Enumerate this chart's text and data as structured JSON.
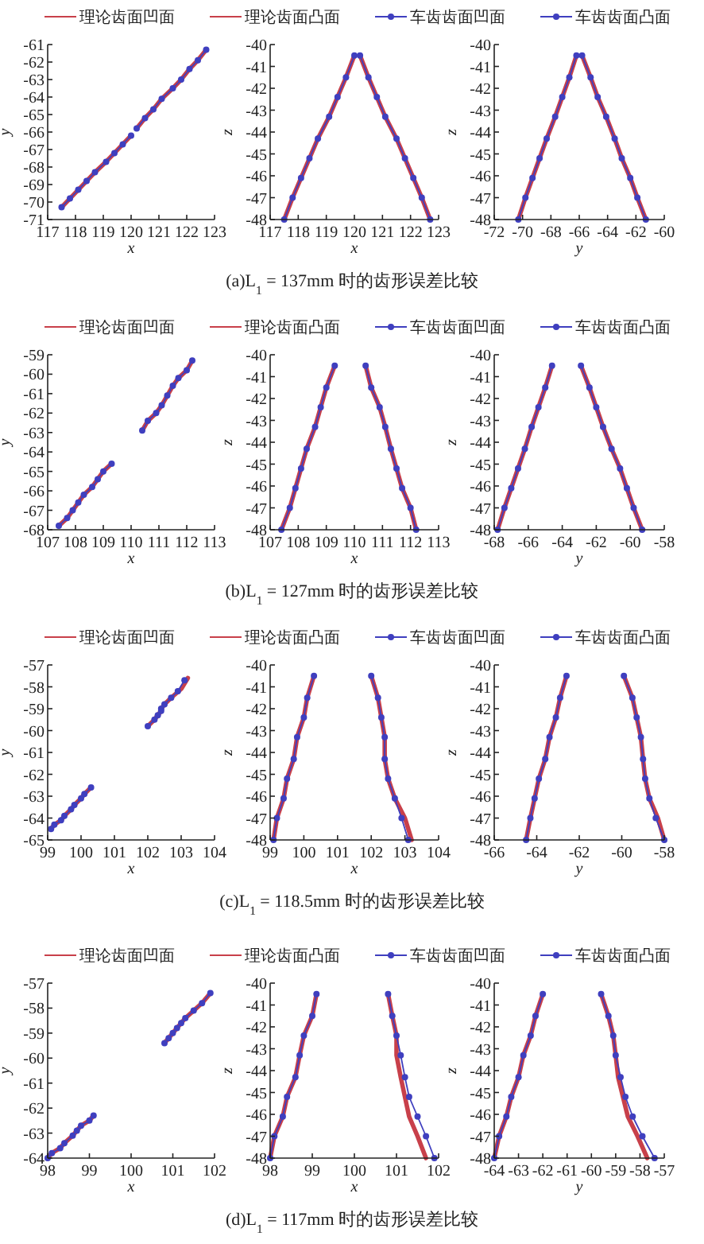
{
  "chart_data": [
    {
      "type": "line",
      "xlabel": "x",
      "ylabel": "y",
      "xlim": [
        117,
        123
      ],
      "xticks": [
        117,
        118,
        119,
        120,
        121,
        122,
        123
      ],
      "ylim": [
        -71,
        -61
      ],
      "yticks": [
        -71,
        -70,
        -69,
        -68,
        -67,
        -66,
        -65,
        -64,
        -63,
        -62,
        -61
      ],
      "legend": "top",
      "annotations": [
        "(a)L$_{1}$ = 137mm 时的齿形误差比较"
      ],
      "series": [
        {
          "name": "理论齿面凹面",
          "color": "#c8404a",
          "marker": "none",
          "x": [
            117.5,
            117.8,
            118.1,
            118.4,
            118.7,
            119.1,
            119.4,
            119.7,
            120.0
          ],
          "values": [
            -70.3,
            -69.8,
            -69.3,
            -68.8,
            -68.3,
            -67.7,
            -67.2,
            -66.7,
            -66.2
          ]
        },
        {
          "name": "理论齿面凸面",
          "color": "#c8404a",
          "marker": "none",
          "x": [
            122.7,
            122.4,
            122.1,
            121.8,
            121.5,
            121.1,
            120.8,
            120.5,
            120.2
          ],
          "values": [
            -61.3,
            -61.9,
            -62.4,
            -63.0,
            -63.5,
            -64.1,
            -64.7,
            -65.2,
            -65.8
          ]
        },
        {
          "name": "车齿齿面凹面",
          "color": "#3f3fbf",
          "marker": "circle",
          "x": [
            117.5,
            117.8,
            118.1,
            118.4,
            118.7,
            119.1,
            119.4,
            119.7,
            120.0
          ],
          "values": [
            -70.3,
            -69.8,
            -69.3,
            -68.8,
            -68.3,
            -67.7,
            -67.2,
            -66.7,
            -66.2
          ]
        },
        {
          "name": "车齿齿面凸面",
          "color": "#3f3fbf",
          "marker": "circle",
          "x": [
            122.7,
            122.4,
            122.1,
            121.8,
            121.5,
            121.1,
            120.8,
            120.5,
            120.2
          ],
          "values": [
            -61.3,
            -61.9,
            -62.4,
            -63.0,
            -63.5,
            -64.1,
            -64.7,
            -65.2,
            -65.8
          ]
        }
      ]
    },
    {
      "type": "line",
      "xlabel": "x",
      "ylabel": "z",
      "xlim": [
        117,
        123
      ],
      "xticks": [
        117,
        118,
        119,
        120,
        121,
        122,
        123
      ],
      "ylim": [
        -48,
        -40
      ],
      "yticks": [
        -48,
        -47,
        -46,
        -45,
        -44,
        -43,
        -42,
        -41,
        -40
      ],
      "series": [
        {
          "color": "#c8404a",
          "marker": "none",
          "x": [
            117.5,
            117.8,
            118.1,
            118.4,
            118.7,
            119.1,
            119.4,
            119.7,
            120.0
          ],
          "values": [
            -48,
            -47,
            -46.1,
            -45.2,
            -44.3,
            -43.3,
            -42.4,
            -41.5,
            -40.5
          ]
        },
        {
          "color": "#c8404a",
          "marker": "none",
          "x": [
            122.7,
            122.4,
            122.1,
            121.8,
            121.5,
            121.1,
            120.8,
            120.5,
            120.2
          ],
          "values": [
            -48,
            -47,
            -46.1,
            -45.2,
            -44.3,
            -43.3,
            -42.4,
            -41.5,
            -40.5
          ]
        },
        {
          "color": "#3f3fbf",
          "marker": "circle",
          "x": [
            117.5,
            117.8,
            118.1,
            118.4,
            118.7,
            119.1,
            119.4,
            119.7,
            120.0
          ],
          "values": [
            -48,
            -47,
            -46.1,
            -45.2,
            -44.3,
            -43.3,
            -42.4,
            -41.5,
            -40.5
          ]
        },
        {
          "color": "#3f3fbf",
          "marker": "circle",
          "x": [
            122.7,
            122.4,
            122.1,
            121.8,
            121.5,
            121.1,
            120.8,
            120.5,
            120.2
          ],
          "values": [
            -48,
            -47,
            -46.1,
            -45.2,
            -44.3,
            -43.3,
            -42.4,
            -41.5,
            -40.5
          ]
        }
      ]
    },
    {
      "type": "line",
      "xlabel": "y",
      "ylabel": "z",
      "xlim": [
        -72,
        -60
      ],
      "xticks": [
        -72,
        -70,
        -68,
        -66,
        -64,
        -62,
        -60
      ],
      "ylim": [
        -48,
        -40
      ],
      "yticks": [
        -48,
        -47,
        -46,
        -45,
        -44,
        -43,
        -42,
        -41,
        -40
      ],
      "series": [
        {
          "color": "#c8404a",
          "marker": "none",
          "x": [
            -70.3,
            -69.8,
            -69.3,
            -68.8,
            -68.3,
            -67.7,
            -67.2,
            -66.7,
            -66.2
          ],
          "values": [
            -48,
            -47,
            -46.1,
            -45.2,
            -44.3,
            -43.3,
            -42.4,
            -41.5,
            -40.5
          ]
        },
        {
          "color": "#c8404a",
          "marker": "none",
          "x": [
            -61.3,
            -61.9,
            -62.4,
            -63.0,
            -63.5,
            -64.1,
            -64.7,
            -65.2,
            -65.8
          ],
          "values": [
            -48,
            -47,
            -46.1,
            -45.2,
            -44.3,
            -43.3,
            -42.4,
            -41.5,
            -40.5
          ]
        },
        {
          "color": "#3f3fbf",
          "marker": "circle",
          "x": [
            -70.3,
            -69.8,
            -69.3,
            -68.8,
            -68.3,
            -67.7,
            -67.2,
            -66.7,
            -66.2
          ],
          "values": [
            -48,
            -47,
            -46.1,
            -45.2,
            -44.3,
            -43.3,
            -42.4,
            -41.5,
            -40.5
          ]
        },
        {
          "color": "#3f3fbf",
          "marker": "circle",
          "x": [
            -61.3,
            -61.9,
            -62.4,
            -63.0,
            -63.5,
            -64.1,
            -64.7,
            -65.2,
            -65.8
          ],
          "values": [
            -48,
            -47,
            -46.1,
            -45.2,
            -44.3,
            -43.3,
            -42.4,
            -41.5,
            -40.5
          ]
        }
      ]
    },
    {
      "type": "line",
      "xlabel": "x",
      "ylabel": "y",
      "xlim": [
        107,
        113
      ],
      "xticks": [
        107,
        108,
        109,
        110,
        111,
        112,
        113
      ],
      "ylim": [
        -68,
        -59
      ],
      "yticks": [
        -68,
        -67,
        -66,
        -65,
        -64,
        -63,
        -62,
        -61,
        -60,
        -59
      ],
      "legend": "top",
      "annotations": [
        "(b)L$_{1}$ = 127mm 时的齿形误差比较"
      ],
      "series": [
        {
          "name": "理论齿面凹面",
          "color": "#c8404a",
          "marker": "none",
          "x": [
            107.4,
            107.7,
            107.9,
            108.1,
            108.3,
            108.6,
            108.8,
            109.0,
            109.3
          ],
          "values": [
            -67.8,
            -67.4,
            -67.0,
            -66.6,
            -66.2,
            -65.8,
            -65.4,
            -65.0,
            -64.6
          ]
        },
        {
          "name": "理论齿面凸面",
          "color": "#c8404a",
          "marker": "none",
          "x": [
            112.2,
            112.0,
            111.7,
            111.5,
            111.3,
            111.1,
            110.9,
            110.6,
            110.4
          ],
          "values": [
            -59.3,
            -59.8,
            -60.2,
            -60.6,
            -61.1,
            -61.6,
            -62.0,
            -62.4,
            -62.9
          ]
        },
        {
          "name": "车齿齿面凹面",
          "color": "#3f3fbf",
          "marker": "circle",
          "x": [
            107.4,
            107.7,
            107.9,
            108.1,
            108.3,
            108.6,
            108.8,
            109.0,
            109.3
          ],
          "values": [
            -67.8,
            -67.4,
            -67.0,
            -66.6,
            -66.2,
            -65.8,
            -65.4,
            -65.0,
            -64.6
          ]
        },
        {
          "name": "车齿齿面凸面",
          "color": "#3f3fbf",
          "marker": "circle",
          "x": [
            112.2,
            112.0,
            111.7,
            111.5,
            111.3,
            111.1,
            110.9,
            110.6,
            110.4
          ],
          "values": [
            -59.3,
            -59.8,
            -60.2,
            -60.6,
            -61.1,
            -61.6,
            -62.0,
            -62.4,
            -62.9
          ]
        }
      ]
    },
    {
      "type": "line",
      "xlabel": "x",
      "ylabel": "z",
      "xlim": [
        107,
        113
      ],
      "xticks": [
        107,
        108,
        109,
        110,
        111,
        112,
        113
      ],
      "ylim": [
        -48,
        -40
      ],
      "yticks": [
        -48,
        -47,
        -46,
        -45,
        -44,
        -43,
        -42,
        -41,
        -40
      ],
      "series": [
        {
          "color": "#c8404a",
          "marker": "none",
          "x": [
            107.4,
            107.7,
            107.9,
            108.1,
            108.3,
            108.6,
            108.8,
            109.0,
            109.3
          ],
          "values": [
            -48,
            -47,
            -46.1,
            -45.2,
            -44.3,
            -43.3,
            -42.4,
            -41.5,
            -40.5
          ]
        },
        {
          "color": "#c8404a",
          "marker": "none",
          "x": [
            112.2,
            112.0,
            111.7,
            111.5,
            111.3,
            111.1,
            110.9,
            110.6,
            110.4
          ],
          "values": [
            -48,
            -47,
            -46.1,
            -45.2,
            -44.3,
            -43.3,
            -42.4,
            -41.5,
            -40.5
          ]
        },
        {
          "color": "#3f3fbf",
          "marker": "circle",
          "x": [
            107.4,
            107.7,
            107.9,
            108.1,
            108.3,
            108.6,
            108.8,
            109.0,
            109.3
          ],
          "values": [
            -48,
            -47,
            -46.1,
            -45.2,
            -44.3,
            -43.3,
            -42.4,
            -41.5,
            -40.5
          ]
        },
        {
          "color": "#3f3fbf",
          "marker": "circle",
          "x": [
            112.2,
            112.0,
            111.7,
            111.5,
            111.3,
            111.1,
            110.9,
            110.6,
            110.4
          ],
          "values": [
            -48,
            -47,
            -46.1,
            -45.2,
            -44.3,
            -43.3,
            -42.4,
            -41.5,
            -40.5
          ]
        }
      ]
    },
    {
      "type": "line",
      "xlabel": "y",
      "ylabel": "z",
      "xlim": [
        -68,
        -58
      ],
      "xticks": [
        -68,
        -66,
        -64,
        -62,
        -60,
        -58
      ],
      "ylim": [
        -48,
        -40
      ],
      "yticks": [
        -48,
        -47,
        -46,
        -45,
        -44,
        -43,
        -42,
        -41,
        -40
      ],
      "series": [
        {
          "color": "#c8404a",
          "marker": "none",
          "x": [
            -67.8,
            -67.4,
            -67.0,
            -66.6,
            -66.2,
            -65.8,
            -65.4,
            -65.0,
            -64.6
          ],
          "values": [
            -48,
            -47,
            -46.1,
            -45.2,
            -44.3,
            -43.3,
            -42.4,
            -41.5,
            -40.5
          ]
        },
        {
          "color": "#c8404a",
          "marker": "none",
          "x": [
            -59.3,
            -59.8,
            -60.2,
            -60.6,
            -61.1,
            -61.6,
            -62.0,
            -62.4,
            -62.9
          ],
          "values": [
            -48,
            -47,
            -46.1,
            -45.2,
            -44.3,
            -43.3,
            -42.4,
            -41.5,
            -40.5
          ]
        },
        {
          "color": "#3f3fbf",
          "marker": "circle",
          "x": [
            -67.8,
            -67.4,
            -67.0,
            -66.6,
            -66.2,
            -65.8,
            -65.4,
            -65.0,
            -64.6
          ],
          "values": [
            -48,
            -47,
            -46.1,
            -45.2,
            -44.3,
            -43.3,
            -42.4,
            -41.5,
            -40.5
          ]
        },
        {
          "color": "#3f3fbf",
          "marker": "circle",
          "x": [
            -59.3,
            -59.8,
            -60.2,
            -60.6,
            -61.1,
            -61.6,
            -62.0,
            -62.4,
            -62.9
          ],
          "values": [
            -48,
            -47,
            -46.1,
            -45.2,
            -44.3,
            -43.3,
            -42.4,
            -41.5,
            -40.5
          ]
        }
      ]
    },
    {
      "type": "line",
      "xlabel": "x",
      "ylabel": "y",
      "xlim": [
        99,
        104
      ],
      "xticks": [
        99,
        100,
        101,
        102,
        103,
        104
      ],
      "ylim": [
        -65,
        -57
      ],
      "yticks": [
        -65,
        -64,
        -63,
        -62,
        -61,
        -60,
        -59,
        -58,
        -57
      ],
      "legend": "top",
      "annotations": [
        "(c)L$_{1}$ = 118.5mm 时的齿形误差比较"
      ],
      "series": [
        {
          "name": "理论齿面凹面",
          "color": "#c8404a",
          "marker": "none",
          "x": [
            99.1,
            99.2,
            99.4,
            99.5,
            99.7,
            99.8,
            100.0,
            100.1,
            100.3
          ],
          "values": [
            -64.5,
            -64.3,
            -64.1,
            -63.9,
            -63.6,
            -63.4,
            -63.1,
            -62.9,
            -62.6
          ]
        },
        {
          "name": "理论齿面凸面",
          "color": "#c8404a",
          "marker": "none",
          "x": [
            103.2,
            103.0,
            102.7,
            102.5,
            102.4,
            102.4,
            102.3,
            102.2,
            102.0
          ],
          "values": [
            -57.6,
            -58.1,
            -58.5,
            -58.8,
            -59.0,
            -59.1,
            -59.3,
            -59.5,
            -59.8
          ]
        },
        {
          "name": "车齿齿面凹面",
          "color": "#3f3fbf",
          "marker": "circle",
          "x": [
            99.1,
            99.2,
            99.4,
            99.5,
            99.7,
            99.8,
            100.0,
            100.1,
            100.3
          ],
          "values": [
            -64.5,
            -64.3,
            -64.1,
            -63.9,
            -63.6,
            -63.4,
            -63.1,
            -62.9,
            -62.6
          ]
        },
        {
          "name": "车齿齿面凸面",
          "color": "#3f3fbf",
          "marker": "circle",
          "x": [
            103.1,
            102.9,
            102.7,
            102.5,
            102.4,
            102.4,
            102.3,
            102.2,
            102.0
          ],
          "values": [
            -57.7,
            -58.2,
            -58.5,
            -58.8,
            -59.0,
            -59.1,
            -59.3,
            -59.5,
            -59.8
          ]
        }
      ]
    },
    {
      "type": "line",
      "xlabel": "x",
      "ylabel": "z",
      "xlim": [
        99,
        104
      ],
      "xticks": [
        99,
        100,
        101,
        102,
        103,
        104
      ],
      "ylim": [
        -48,
        -40
      ],
      "yticks": [
        -48,
        -47,
        -46,
        -45,
        -44,
        -43,
        -42,
        -41,
        -40
      ],
      "series": [
        {
          "color": "#c8404a",
          "marker": "none",
          "x": [
            99.1,
            99.2,
            99.4,
            99.5,
            99.7,
            99.8,
            100.0,
            100.1,
            100.3
          ],
          "values": [
            -48,
            -47,
            -46.1,
            -45.2,
            -44.3,
            -43.3,
            -42.4,
            -41.5,
            -40.5
          ]
        },
        {
          "color": "#c8404a",
          "marker": "none",
          "x": [
            103.2,
            103.0,
            102.7,
            102.5,
            102.4,
            102.4,
            102.3,
            102.2,
            102.0
          ],
          "values": [
            -48,
            -47,
            -46.1,
            -45.2,
            -44.3,
            -43.3,
            -42.4,
            -41.5,
            -40.5
          ]
        },
        {
          "color": "#3f3fbf",
          "marker": "circle",
          "x": [
            99.1,
            99.2,
            99.4,
            99.5,
            99.7,
            99.8,
            100.0,
            100.1,
            100.3
          ],
          "values": [
            -48,
            -47,
            -46.1,
            -45.2,
            -44.3,
            -43.3,
            -42.4,
            -41.5,
            -40.5
          ]
        },
        {
          "color": "#3f3fbf",
          "marker": "circle",
          "x": [
            103.1,
            102.9,
            102.7,
            102.5,
            102.4,
            102.4,
            102.3,
            102.2,
            102.0
          ],
          "values": [
            -48,
            -47,
            -46.1,
            -45.2,
            -44.3,
            -43.3,
            -42.4,
            -41.5,
            -40.5
          ]
        }
      ]
    },
    {
      "type": "line",
      "xlabel": "y",
      "ylabel": "z",
      "xlim": [
        -66,
        -58
      ],
      "xticks": [
        -66,
        -64,
        -62,
        -60,
        -58
      ],
      "ylim": [
        -48,
        -40
      ],
      "yticks": [
        -48,
        -47,
        -46,
        -45,
        -44,
        -43,
        -42,
        -41,
        -40
      ],
      "series": [
        {
          "color": "#c8404a",
          "marker": "none",
          "x": [
            -64.5,
            -64.3,
            -64.1,
            -63.9,
            -63.6,
            -63.4,
            -63.1,
            -62.9,
            -62.6
          ],
          "values": [
            -48,
            -47,
            -46.1,
            -45.2,
            -44.3,
            -43.3,
            -42.4,
            -41.5,
            -40.5
          ]
        },
        {
          "color": "#c8404a",
          "marker": "none",
          "x": [
            -58.0,
            -58.3,
            -58.7,
            -58.9,
            -59.0,
            -59.1,
            -59.3,
            -59.5,
            -59.9
          ],
          "values": [
            -48,
            -47,
            -46.1,
            -45.2,
            -44.3,
            -43.3,
            -42.4,
            -41.5,
            -40.5
          ]
        },
        {
          "color": "#3f3fbf",
          "marker": "circle",
          "x": [
            -64.5,
            -64.3,
            -64.1,
            -63.9,
            -63.6,
            -63.4,
            -63.1,
            -62.9,
            -62.6
          ],
          "values": [
            -48,
            -47,
            -46.1,
            -45.2,
            -44.3,
            -43.3,
            -42.4,
            -41.5,
            -40.5
          ]
        },
        {
          "color": "#3f3fbf",
          "marker": "circle",
          "x": [
            -58.0,
            -58.4,
            -58.7,
            -58.9,
            -59.0,
            -59.1,
            -59.3,
            -59.5,
            -59.9
          ],
          "values": [
            -48,
            -47,
            -46.1,
            -45.2,
            -44.3,
            -43.3,
            -42.4,
            -41.5,
            -40.5
          ]
        }
      ]
    },
    {
      "type": "line",
      "xlabel": "x",
      "ylabel": "y",
      "xlim": [
        98,
        102
      ],
      "xticks": [
        98,
        99,
        100,
        101,
        102
      ],
      "ylim": [
        -64,
        -57
      ],
      "yticks": [
        -64,
        -63,
        -62,
        -61,
        -60,
        -59,
        -58,
        -57
      ],
      "legend": "top",
      "annotations": [
        "(d)L$_{1}$ = 117mm 时的齿形误差比较"
      ],
      "series": [
        {
          "name": "理论齿面凹面",
          "color": "#c8404a",
          "marker": "none",
          "x": [
            98.0,
            98.1,
            98.3,
            98.4,
            98.6,
            98.7,
            98.8,
            99.0,
            99.1
          ],
          "values": [
            -64.0,
            -63.8,
            -63.6,
            -63.4,
            -63.1,
            -62.9,
            -62.7,
            -62.5,
            -62.3
          ]
        },
        {
          "name": "理论齿面凸面",
          "color": "#c8404a",
          "marker": "none",
          "x": [
            101.9,
            101.7,
            101.5,
            101.3,
            101.2,
            101.1,
            101.0,
            100.9,
            100.8
          ],
          "values": [
            -57.4,
            -57.8,
            -58.1,
            -58.4,
            -58.6,
            -58.8,
            -59.0,
            -59.2,
            -59.4
          ]
        },
        {
          "name": "车齿齿面凹面",
          "color": "#3f3fbf",
          "marker": "circle",
          "x": [
            98.0,
            98.1,
            98.3,
            98.4,
            98.6,
            98.7,
            98.8,
            99.0,
            99.1
          ],
          "values": [
            -64.0,
            -63.8,
            -63.6,
            -63.4,
            -63.1,
            -62.9,
            -62.7,
            -62.5,
            -62.3
          ]
        },
        {
          "name": "车齿齿面凸面",
          "color": "#3f3fbf",
          "marker": "circle",
          "x": [
            101.9,
            101.7,
            101.5,
            101.3,
            101.2,
            101.1,
            101.0,
            100.9,
            100.8
          ],
          "values": [
            -57.4,
            -57.8,
            -58.1,
            -58.4,
            -58.6,
            -58.8,
            -59.0,
            -59.2,
            -59.4
          ]
        }
      ]
    },
    {
      "type": "line",
      "xlabel": "x",
      "ylabel": "z",
      "xlim": [
        98,
        102
      ],
      "xticks": [
        98,
        99,
        100,
        101,
        102
      ],
      "ylim": [
        -48,
        -40
      ],
      "yticks": [
        -48,
        -47,
        -46,
        -45,
        -44,
        -43,
        -42,
        -41,
        -40
      ],
      "series": [
        {
          "color": "#c8404a",
          "marker": "none",
          "x": [
            98.0,
            98.1,
            98.3,
            98.4,
            98.6,
            98.7,
            98.8,
            99.0,
            99.1
          ],
          "values": [
            -48,
            -47,
            -46.1,
            -45.2,
            -44.3,
            -43.3,
            -42.4,
            -41.5,
            -40.5
          ]
        },
        {
          "color": "#c8404a",
          "marker": "none",
          "x": [
            101.7,
            101.5,
            101.3,
            101.2,
            101.1,
            101.0,
            101.0,
            100.9,
            100.8
          ],
          "values": [
            -48,
            -47,
            -46.1,
            -45.2,
            -44.3,
            -43.3,
            -42.4,
            -41.5,
            -40.5
          ]
        },
        {
          "color": "#3f3fbf",
          "marker": "circle",
          "x": [
            98.0,
            98.1,
            98.3,
            98.4,
            98.6,
            98.7,
            98.8,
            99.0,
            99.1
          ],
          "values": [
            -48,
            -47,
            -46.1,
            -45.2,
            -44.3,
            -43.3,
            -42.4,
            -41.5,
            -40.5
          ]
        },
        {
          "color": "#3f3fbf",
          "marker": "circle",
          "x": [
            101.9,
            101.7,
            101.5,
            101.3,
            101.2,
            101.1,
            101.0,
            100.9,
            100.8
          ],
          "values": [
            -48,
            -47,
            -46.1,
            -45.2,
            -44.3,
            -43.3,
            -42.4,
            -41.5,
            -40.5
          ]
        }
      ]
    },
    {
      "type": "line",
      "xlabel": "y",
      "ylabel": "z",
      "xlim": [
        -64,
        -57
      ],
      "xticks": [
        -64,
        -63,
        -62,
        -61,
        -60,
        -59,
        -58,
        -57
      ],
      "ylim": [
        -48,
        -40
      ],
      "yticks": [
        -48,
        -47,
        -46,
        -45,
        -44,
        -43,
        -42,
        -41,
        -40
      ],
      "series": [
        {
          "color": "#c8404a",
          "marker": "none",
          "x": [
            -64.0,
            -63.8,
            -63.5,
            -63.3,
            -63.0,
            -62.8,
            -62.5,
            -62.3,
            -62.0
          ],
          "values": [
            -48,
            -47,
            -46.1,
            -45.2,
            -44.3,
            -43.3,
            -42.4,
            -41.5,
            -40.5
          ]
        },
        {
          "color": "#c8404a",
          "marker": "none",
          "x": [
            -57.7,
            -58.1,
            -58.5,
            -58.7,
            -58.9,
            -59.0,
            -59.1,
            -59.3,
            -59.6
          ],
          "values": [
            -48,
            -47,
            -46.1,
            -45.2,
            -44.3,
            -43.3,
            -42.4,
            -41.5,
            -40.5
          ]
        },
        {
          "color": "#3f3fbf",
          "marker": "circle",
          "x": [
            -64.0,
            -63.8,
            -63.5,
            -63.3,
            -63.0,
            -62.8,
            -62.5,
            -62.3,
            -62.0
          ],
          "values": [
            -48,
            -47,
            -46.1,
            -45.2,
            -44.3,
            -43.3,
            -42.4,
            -41.5,
            -40.5
          ]
        },
        {
          "color": "#3f3fbf",
          "marker": "circle",
          "x": [
            -57.4,
            -57.9,
            -58.3,
            -58.6,
            -58.8,
            -59.0,
            -59.1,
            -59.3,
            -59.6
          ],
          "values": [
            -48,
            -47,
            -46.1,
            -45.2,
            -44.3,
            -43.3,
            -42.4,
            -41.5,
            -40.5
          ]
        }
      ]
    }
  ]
}
